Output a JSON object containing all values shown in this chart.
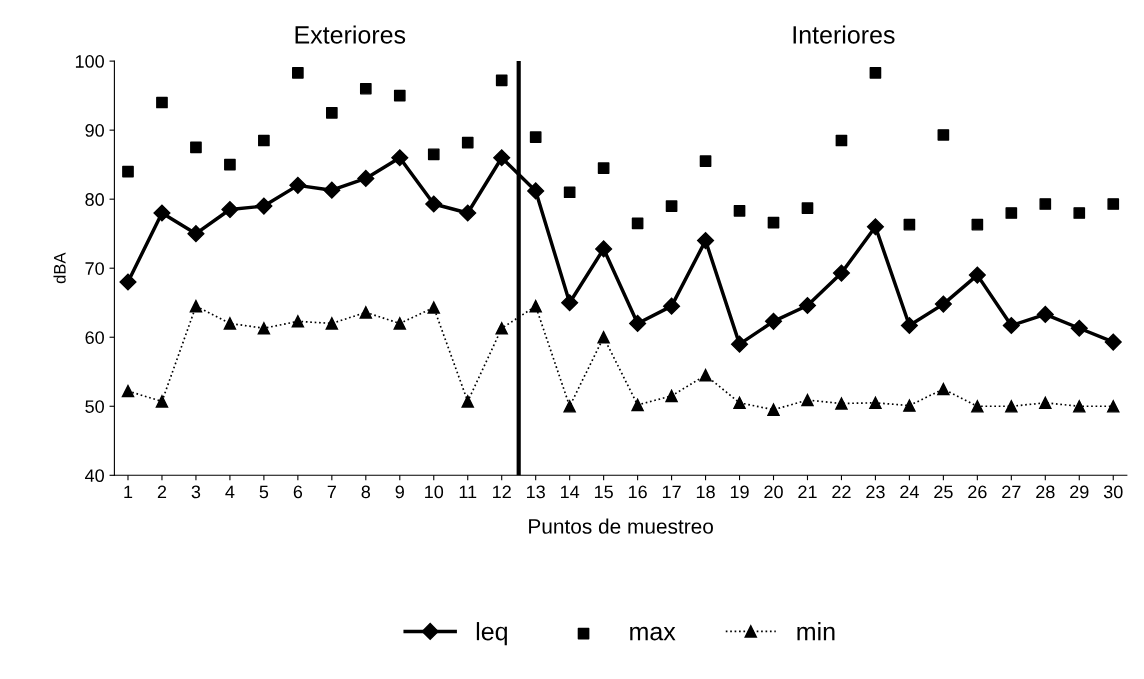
{
  "chart_data": {
    "type": "line",
    "xlabel": "Puntos de muestreo",
    "ylabel": "dBA",
    "categories": [
      "1",
      "2",
      "3",
      "4",
      "5",
      "6",
      "7",
      "8",
      "9",
      "10",
      "11",
      "12",
      "13",
      "14",
      "15",
      "16",
      "17",
      "18",
      "19",
      "20",
      "21",
      "22",
      "23",
      "24",
      "25",
      "26",
      "27",
      "28",
      "29",
      "30"
    ],
    "series": [
      {
        "name": "leq",
        "color": "#000000",
        "marker": "diamond",
        "line_style": "solid",
        "values": [
          68,
          78,
          75,
          78.5,
          79,
          82,
          81.3,
          83,
          86,
          79.3,
          78,
          86,
          81.2,
          65,
          72.8,
          62,
          64.5,
          74,
          59,
          62.3,
          64.6,
          69.3,
          76,
          61.7,
          64.8,
          69,
          61.7,
          63.3,
          61.3,
          59.3
        ]
      },
      {
        "name": "max",
        "color": "#000000",
        "type": "scatter",
        "marker": "square",
        "values": [
          84,
          94,
          87.5,
          85,
          88.5,
          98.3,
          92.5,
          96,
          95,
          86.5,
          88.2,
          97.2,
          89,
          81,
          84.5,
          76.5,
          79,
          85.5,
          78.3,
          76.6,
          78.7,
          88.5,
          98.3,
          76.3,
          89.3,
          76.3,
          78,
          79.3,
          78,
          79.3
        ]
      },
      {
        "name": "min",
        "color": "#000000",
        "marker": "triangle",
        "line_style": "dotted",
        "values": [
          52.2,
          50.7,
          64.5,
          62,
          61.3,
          62.3,
          62,
          63.6,
          62,
          64.3,
          50.7,
          61.3,
          64.5,
          50,
          60,
          50.2,
          51.5,
          54.5,
          50.5,
          49.5,
          50.9,
          50.4,
          50.5,
          50.1,
          52.5,
          50,
          50,
          50.5,
          50,
          50
        ]
      }
    ],
    "ylim": [
      40,
      100
    ],
    "yticks": [
      40,
      50,
      60,
      70,
      80,
      90,
      100
    ],
    "annotations": [
      "Exteriores",
      "Interiores"
    ],
    "grid": false,
    "legend": "bottom"
  }
}
